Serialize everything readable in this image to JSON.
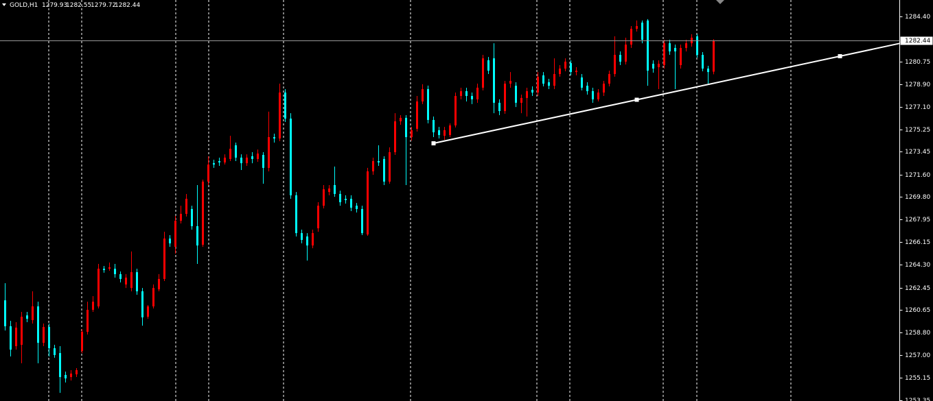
{
  "chart_data": {
    "type": "candlestick",
    "symbol": "GOLD,H1",
    "up_color": "#ff0000",
    "down_color": "#00ffff",
    "open": [
      1261.42,
      1259.32,
      1257.71,
      1257.82,
      1260.2,
      1259.82,
      1260.93,
      1257.98,
      1259.26,
      1257.54,
      1257.15,
      1255.38,
      1255.21,
      1255.43,
      1257.32,
      1258.87,
      1260.65,
      1260.93,
      1263.98,
      1263.98,
      1263.98,
      1263.54,
      1262.7,
      1262.42,
      1263.7,
      1262.15,
      1260.09,
      1260.93,
      1262.31,
      1263.15,
      1266.42,
      1265.75,
      1267.86,
      1268.42,
      1268.81,
      1267.42,
      1265.92,
      1271.03,
      1272.52,
      1272.69,
      1272.58,
      1272.86,
      1273.97,
      1272.97,
      1272.52,
      1273.08,
      1272.86,
      1273.19,
      1272.14,
      1274.63,
      1274.52,
      1278.24,
      1276.13,
      1269.92,
      1266.86,
      1266.59,
      1265.86,
      1267.25,
      1269.08,
      1270.19,
      1270.75,
      1270.03,
      1269.64,
      1269.64,
      1269.08,
      1268.81,
      1266.75,
      1271.86,
      1272.69,
      1272.86,
      1271.03,
      1273.41,
      1275.91,
      1276.19,
      1274.63,
      1275.3,
      1277.52,
      1278.52,
      1276.02,
      1275.19,
      1274.74,
      1274.8,
      1275.58,
      1277.96,
      1278.35,
      1277.96,
      1277.69,
      1278.63,
      1280.85,
      1281.01,
      1277.41,
      1276.74,
      1278.96,
      1278.79,
      1277.41,
      1277.8,
      1278.46,
      1278.24,
      1279.63,
      1279.07,
      1278.79,
      1279.74,
      1280.18,
      1280.62,
      1279.9,
      1279.46,
      1278.79,
      1278.35,
      1277.69,
      1278.24,
      1278.96,
      1279.74,
      1281.29,
      1280.74,
      1282.12,
      1283.4,
      1283.9,
      1284.07,
      1280.57,
      1280.29,
      1280.46,
      1282.23,
      1281.85,
      1280.46,
      1281.85,
      1282.23,
      1282.79,
      1281.29,
      1280.18,
      1279.93
    ],
    "high": [
      1262.81,
      1259.76,
      1259.65,
      1260.48,
      1260.48,
      1262.15,
      1261.31,
      1259.54,
      1259.54,
      1257.82,
      1257.71,
      1255.65,
      1255.77,
      1255.93,
      1259.09,
      1261.31,
      1261.76,
      1264.37,
      1264.2,
      1264.48,
      1264.37,
      1263.76,
      1263.54,
      1265.37,
      1263.98,
      1262.42,
      1261.04,
      1262.7,
      1263.54,
      1266.97,
      1266.7,
      1268.25,
      1269.08,
      1270.03,
      1269.08,
      1270.75,
      1271.19,
      1273.08,
      1272.8,
      1272.97,
      1273.24,
      1274.74,
      1274.19,
      1273.24,
      1273.24,
      1273.41,
      1273.63,
      1273.41,
      1276.69,
      1274.91,
      1278.96,
      1278.52,
      1276.57,
      1270.19,
      1267.14,
      1266.86,
      1267.14,
      1269.36,
      1270.75,
      1270.75,
      1272.25,
      1270.3,
      1269.92,
      1269.92,
      1269.3,
      1269.08,
      1272.14,
      1272.97,
      1273.97,
      1273.08,
      1273.8,
      1276.57,
      1276.41,
      1276.41,
      1275.46,
      1277.96,
      1278.91,
      1278.8,
      1276.3,
      1275.46,
      1275.46,
      1275.74,
      1278.24,
      1278.63,
      1278.63,
      1278.24,
      1278.96,
      1281.29,
      1281.12,
      1282.23,
      1277.69,
      1279.18,
      1279.9,
      1279.07,
      1278.07,
      1278.63,
      1278.74,
      1279.9,
      1279.9,
      1279.35,
      1281.01,
      1280.46,
      1281.01,
      1280.85,
      1280.29,
      1279.74,
      1279.07,
      1278.63,
      1278.52,
      1279.18,
      1280.01,
      1282.79,
      1281.57,
      1282.68,
      1283.62,
      1284.07,
      1284.07,
      1284.18,
      1280.85,
      1280.85,
      1282.51,
      1282.51,
      1282.12,
      1282.12,
      1282.51,
      1282.96,
      1282.96,
      1281.51,
      1280.4,
      1282.55
    ],
    "low": [
      1258.98,
      1256.88,
      1257.43,
      1256.32,
      1259.65,
      1259.54,
      1256.32,
      1257.71,
      1256.88,
      1256.77,
      1253.93,
      1254.77,
      1254.93,
      1255.21,
      1257.15,
      1258.65,
      1260.48,
      1260.76,
      1263.65,
      1263.81,
      1263.26,
      1262.87,
      1262.42,
      1262.15,
      1261.87,
      1259.37,
      1259.93,
      1260.76,
      1262.15,
      1262.98,
      1265.75,
      1265.2,
      1267.64,
      1268.2,
      1267.14,
      1264.37,
      1265.75,
      1270.75,
      1272.14,
      1272.3,
      1272.41,
      1272.69,
      1272.69,
      1271.97,
      1272.3,
      1272.52,
      1272.63,
      1270.86,
      1271.86,
      1274.19,
      1274.3,
      1275.85,
      1269.64,
      1266.59,
      1266.03,
      1264.64,
      1265.64,
      1266.97,
      1268.86,
      1269.92,
      1269.8,
      1269.08,
      1269.25,
      1268.64,
      1268.53,
      1266.7,
      1266.64,
      1271.58,
      1272.3,
      1270.75,
      1270.86,
      1273.19,
      1275.63,
      1270.75,
      1274.35,
      1275.08,
      1277.3,
      1275.74,
      1274.63,
      1274.52,
      1274.41,
      1274.63,
      1275.41,
      1277.69,
      1277.52,
      1277.3,
      1277.41,
      1278.41,
      1279.74,
      1276.57,
      1276.41,
      1276.52,
      1278.63,
      1277.07,
      1276.57,
      1276.3,
      1277.96,
      1277.96,
      1278.74,
      1278.52,
      1278.52,
      1279.52,
      1279.96,
      1279.63,
      1279.63,
      1278.41,
      1278.07,
      1277.41,
      1277.52,
      1277.96,
      1278.74,
      1279.52,
      1280.46,
      1280.51,
      1281.85,
      1283.18,
      1282.23,
      1278.79,
      1279.85,
      1278.52,
      1280.18,
      1281.29,
      1278.52,
      1280.18,
      1281.57,
      1281.96,
      1281.07,
      1279.96,
      1278.96,
      1279.72
    ],
    "close": [
      1259.32,
      1257.43,
      1259.21,
      1260.09,
      1259.93,
      1260.93,
      1257.98,
      1259.26,
      1257.54,
      1256.99,
      1255.21,
      1255.1,
      1255.49,
      1255.77,
      1258.87,
      1260.65,
      1261.31,
      1263.98,
      1263.87,
      1264.09,
      1263.54,
      1263.15,
      1263.26,
      1263.7,
      1262.15,
      1260.04,
      1260.93,
      1262.42,
      1263.15,
      1266.42,
      1266.03,
      1267.86,
      1268.42,
      1269.64,
      1267.42,
      1265.86,
      1271.03,
      1272.41,
      1272.41,
      1272.58,
      1272.97,
      1273.69,
      1272.97,
      1272.52,
      1272.97,
      1272.86,
      1273.3,
      1272.14,
      1274.63,
      1274.52,
      1278.24,
      1276.13,
      1269.92,
      1266.86,
      1266.31,
      1265.86,
      1266.86,
      1269.08,
      1270.41,
      1270.47,
      1270.03,
      1269.36,
      1269.53,
      1268.92,
      1268.81,
      1266.86,
      1271.86,
      1272.69,
      1272.58,
      1271.03,
      1273.41,
      1275.91,
      1276.19,
      1274.63,
      1275.19,
      1277.52,
      1278.52,
      1276.02,
      1275.02,
      1274.8,
      1275.19,
      1275.58,
      1277.96,
      1278.35,
      1277.96,
      1277.69,
      1278.63,
      1281.01,
      1280.01,
      1277.41,
      1276.74,
      1278.96,
      1279.18,
      1277.41,
      1277.8,
      1278.35,
      1278.24,
      1279.52,
      1278.96,
      1278.79,
      1279.74,
      1280.18,
      1280.74,
      1279.9,
      1280.01,
      1278.63,
      1278.35,
      1277.69,
      1278.24,
      1278.96,
      1279.74,
      1281.29,
      1280.74,
      1282.12,
      1283.4,
      1283.62,
      1282.51,
      1280.01,
      1280.18,
      1280.57,
      1282.23,
      1281.57,
      1281.57,
      1281.85,
      1282.23,
      1282.68,
      1281.29,
      1280.18,
      1279.9,
      1282.44
    ],
    "trendline": {
      "x": [
        78,
        152
      ],
      "y": [
        1274.13,
        1281.18
      ],
      "color": "#ffffff"
    },
    "ylim": [
      1253.27,
      1285.73
    ],
    "yticks": [
      {
        "value": 1284.4,
        "label": "1284.40"
      },
      {
        "value": 1280.75,
        "label": "1280.75"
      },
      {
        "value": 1278.9,
        "label": "1278.90"
      },
      {
        "value": 1277.1,
        "label": "1277.10"
      },
      {
        "value": 1275.25,
        "label": "1275.25"
      },
      {
        "value": 1273.45,
        "label": "1273.45"
      },
      {
        "value": 1271.6,
        "label": "1271.60"
      },
      {
        "value": 1269.8,
        "label": "1269.80"
      },
      {
        "value": 1267.95,
        "label": "1267.95"
      },
      {
        "value": 1266.15,
        "label": "1266.15"
      },
      {
        "value": 1264.3,
        "label": "1264.30"
      },
      {
        "value": 1262.45,
        "label": "1262.45"
      },
      {
        "value": 1260.65,
        "label": "1260.65"
      },
      {
        "value": 1258.8,
        "label": "1258.80"
      },
      {
        "value": 1257,
        "label": "1257.00"
      },
      {
        "value": 1255.15,
        "label": "1255.15"
      },
      {
        "value": 1253.35,
        "label": "1253.35"
      }
    ]
  }
}
